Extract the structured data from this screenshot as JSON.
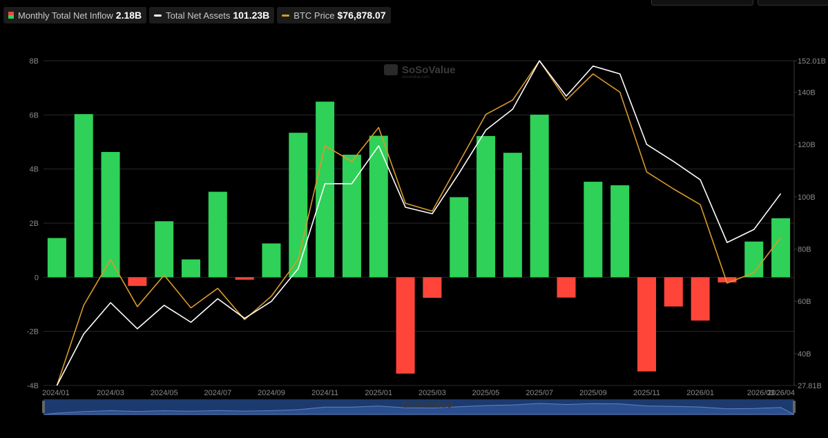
{
  "legend": {
    "inflow_label": "Monthly Total Net Inflow",
    "inflow_value": "2.18B",
    "assets_label": "Total Net Assets",
    "assets_value": "101.23B",
    "btc_label": "BTC Price",
    "btc_value": "$76,878.07"
  },
  "watermark": {
    "brand": "SoSoValue",
    "sub": "sosovalue.com"
  },
  "colors": {
    "positive": "#2fd158",
    "negative": "#ff453a",
    "assets_line": "#ffffff",
    "btc_line": "#d99a2b",
    "grid": "#2a2a2a",
    "navigator": "#1c3a6e"
  },
  "chart_data": {
    "type": "bar",
    "months": [
      "2024/01",
      "2024/02",
      "2024/03",
      "2024/04",
      "2024/05",
      "2024/06",
      "2024/07",
      "2024/08",
      "2024/09",
      "2024/10",
      "2024/11",
      "2024/12",
      "2025/01",
      "2025/02",
      "2025/03",
      "2025/04",
      "2025/05",
      "2025/06",
      "2025/07",
      "2025/08",
      "2025/09",
      "2025/10",
      "2025/11",
      "2025/12",
      "2026/01",
      "2026/02",
      "2026/03",
      "2026/04"
    ],
    "x_tick_labels": [
      "2024/01",
      "2024/03",
      "2024/05",
      "2024/07",
      "2024/09",
      "2024/11",
      "2025/01",
      "2025/03",
      "2025/05",
      "2025/07",
      "2025/09",
      "2025/11",
      "2026/01",
      "2026/03",
      "2026/04"
    ],
    "y_left_ticks": [
      "8B",
      "6B",
      "4B",
      "2B",
      "0",
      "-2B",
      "-4B"
    ],
    "y_left_range": [
      -4,
      8
    ],
    "y_right_ticks": [
      "152.01B",
      "140B",
      "120B",
      "100B",
      "80B",
      "60B",
      "40B",
      "27.81B"
    ],
    "y_right_range": [
      27.81,
      152.01
    ],
    "series": [
      {
        "name": "Monthly Total Net Inflow",
        "type": "bar",
        "values": [
          1.45,
          6.03,
          4.63,
          -0.32,
          2.07,
          0.66,
          3.16,
          -0.09,
          1.25,
          5.34,
          6.49,
          4.53,
          5.23,
          -3.56,
          -0.76,
          2.96,
          5.22,
          4.6,
          6.01,
          -0.75,
          3.53,
          3.4,
          -3.48,
          -1.08,
          -1.6,
          -0.19,
          1.32,
          2.18
        ]
      },
      {
        "name": "Total Net Assets",
        "type": "line",
        "values": [
          27.81,
          47.5,
          59.5,
          49.5,
          58.5,
          52.0,
          61.0,
          53.5,
          60.0,
          72.5,
          105.0,
          105.0,
          119.5,
          96.0,
          93.5,
          109.0,
          125.5,
          133.5,
          152.0,
          138.5,
          150.0,
          147.0,
          120.0,
          113.5,
          106.5,
          82.5,
          87.5,
          101.23
        ]
      },
      {
        "name": "BTC Price",
        "type": "line",
        "values": [
          27.81,
          58.5,
          76.0,
          58.0,
          70.0,
          57.5,
          65.0,
          53.0,
          62.0,
          76.0,
          119.5,
          113.5,
          126.5,
          97.5,
          94.5,
          113.0,
          131.5,
          137.0,
          152.0,
          137.0,
          147.0,
          140.0,
          109.5,
          103.0,
          97.0,
          67.0,
          71.0,
          84.5
        ]
      }
    ]
  }
}
